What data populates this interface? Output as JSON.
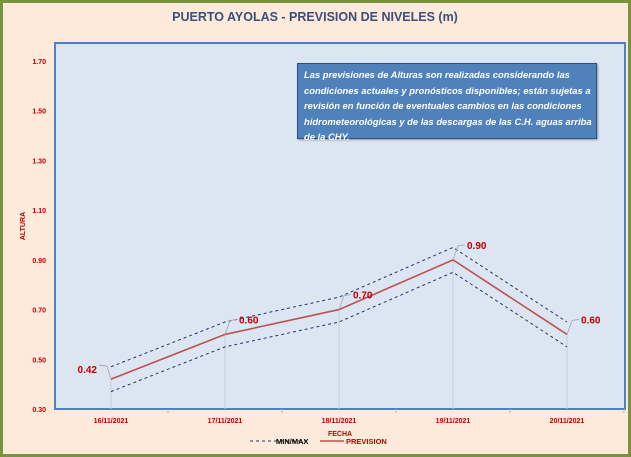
{
  "chart_data": {
    "type": "line",
    "title": "PUERTO AYOLAS - PREVISION DE NIVELES (m)",
    "xlabel": "FECHA",
    "ylabel": "ALTURA",
    "categories": [
      "16/11/2021",
      "17/11/2021",
      "18/11/2021",
      "19/11/2021",
      "20/11/2021"
    ],
    "yticks": [
      "0.30",
      "0.50",
      "0.70",
      "0.90",
      "1.10",
      "1.30",
      "1.50",
      "1.70"
    ],
    "ylim": [
      0.3,
      1.77
    ],
    "series": [
      {
        "name": "PREVISION",
        "values": [
          0.42,
          0.6,
          0.7,
          0.9,
          0.6
        ],
        "labels": [
          "0.42",
          "0.60",
          "0.70",
          "0.90",
          "0.60"
        ],
        "color": "#C0504D"
      },
      {
        "name": "MAX",
        "values": [
          0.47,
          0.65,
          0.75,
          0.95,
          0.65
        ],
        "color": "#1F3864"
      },
      {
        "name": "MIN",
        "values": [
          0.37,
          0.55,
          0.65,
          0.85,
          0.55
        ],
        "color": "#1F3864"
      }
    ],
    "legend": [
      {
        "label": "MIN/MAX"
      },
      {
        "label": "PREVISION"
      }
    ],
    "legend_position": "bottom",
    "annotation": "Las previsiones de Alturas son realizadas considerando las condiciones actuales y pronósticos disponibles;  están sujetas a revisión en función de eventuales cambios en las condiciones hidrometeorológicas y de las descargas de las C.H. aguas arriba de la CHY."
  }
}
